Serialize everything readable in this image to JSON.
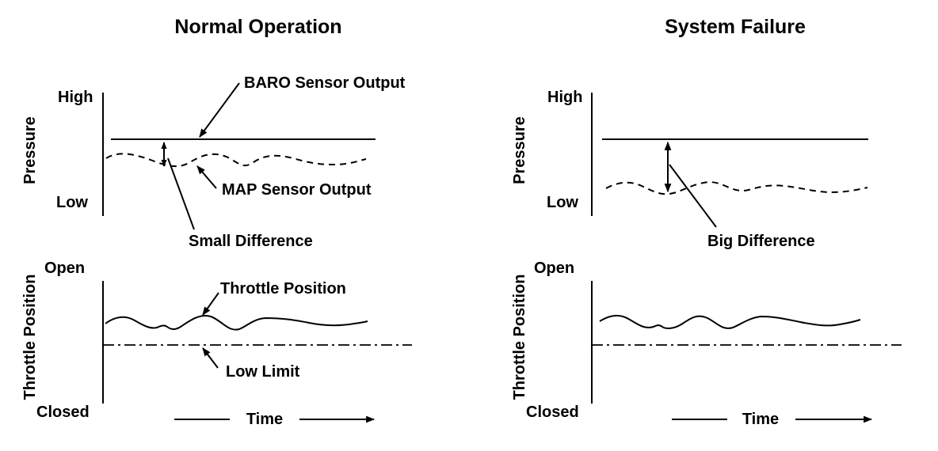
{
  "normal": {
    "title": "Normal Operation",
    "pressure_axis": "Pressure",
    "high": "High",
    "low": "Low",
    "baro_label": "BARO Sensor Output",
    "map_label": "MAP Sensor Output",
    "difference_label": "Small Difference",
    "throttle_axis": "Throttle Position",
    "open": "Open",
    "closed": "Closed",
    "throttle_label": "Throttle Position",
    "low_limit_label": "Low Limit",
    "time_label": "Time"
  },
  "failure": {
    "title": "System Failure",
    "pressure_axis": "Pressure",
    "high": "High",
    "low": "Low",
    "difference_label": "Big Difference",
    "throttle_axis": "Throttle Position",
    "open": "Open",
    "closed": "Closed",
    "time_label": "Time"
  }
}
